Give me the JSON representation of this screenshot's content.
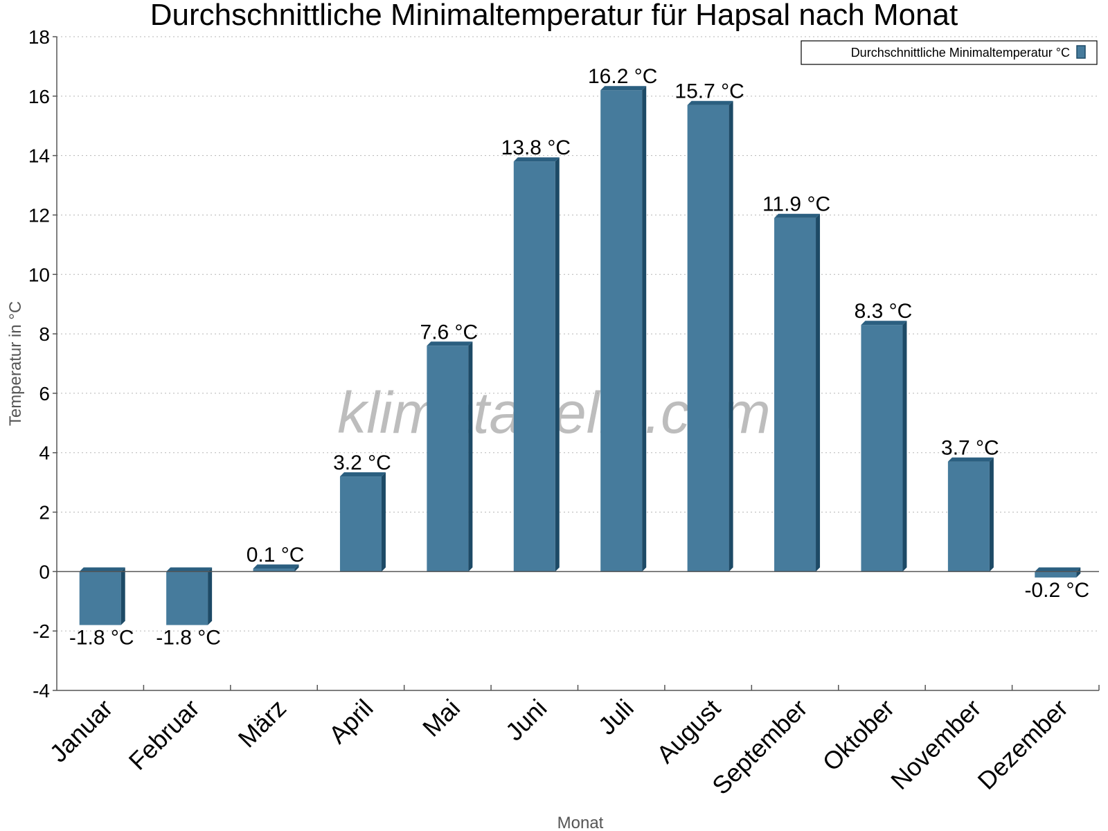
{
  "chart_data": {
    "type": "bar",
    "title": "Durchschnittliche Minimaltemperatur für Hapsal nach Monat",
    "xlabel": "Monat",
    "ylabel": "Temperatur in °C",
    "categories": [
      "Januar",
      "Februar",
      "März",
      "April",
      "Mai",
      "Juni",
      "Juli",
      "August",
      "September",
      "Oktober",
      "November",
      "Dezember"
    ],
    "series": [
      {
        "name": "Durchschnittliche Minimaltemperatur °C",
        "values": [
          -1.8,
          -1.8,
          0.1,
          3.2,
          7.6,
          13.8,
          16.2,
          15.7,
          11.9,
          8.3,
          3.7,
          -0.2
        ],
        "labels": [
          "-1.8 °C",
          "-1.8 °C",
          "0.1 °C",
          "3.2 °C",
          "7.6 °C",
          "13.8 °C",
          "16.2 °C",
          "15.7 °C",
          "11.9 °C",
          "8.3 °C",
          "3.7 °C",
          "-0.2 °C"
        ]
      }
    ],
    "ylim": [
      -4,
      18
    ],
    "yticks": [
      "-4",
      "-2",
      "0",
      "2",
      "4",
      "6",
      "8",
      "10",
      "12",
      "14",
      "16",
      "18"
    ],
    "grid": true,
    "legend_position": "top-right",
    "colors": {
      "bar_front": "#467b9c",
      "bar_side": "#1d4a66",
      "bar_top": "#2b5f80",
      "grid": "#b5b5b5",
      "axis": "#555555"
    }
  },
  "watermark": "klimatabelle.com"
}
